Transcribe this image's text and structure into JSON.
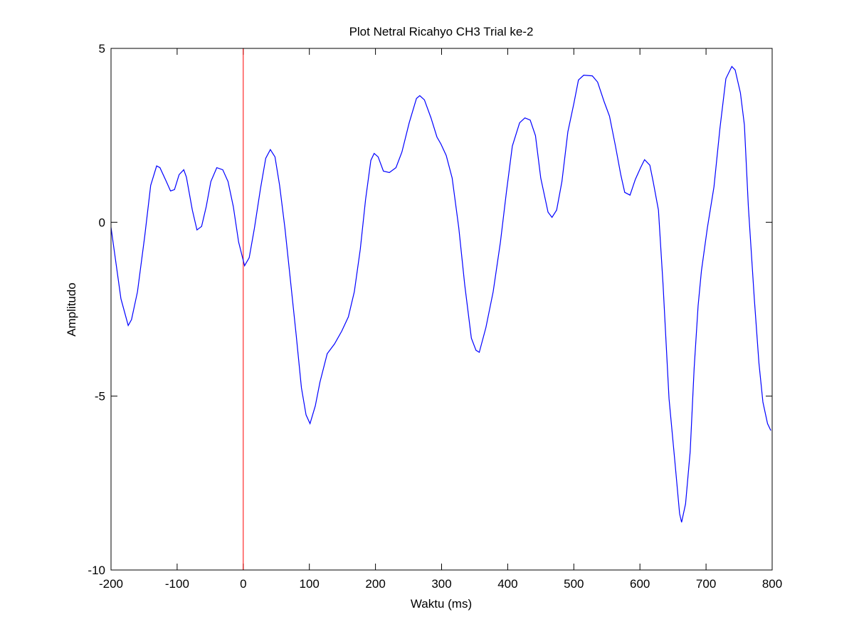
{
  "chart_data": {
    "type": "line",
    "title": "Plot Netral Ricahyo CH3 Trial ke-2",
    "x_label": "Waktu (ms)",
    "y_label": "Amplitudo",
    "x": [
      -200,
      -185,
      -174,
      -169,
      -160,
      -149,
      -140,
      -131,
      -126,
      -117,
      -110,
      -104,
      -97,
      -90,
      -86,
      -77,
      -70,
      -63,
      -56,
      -49,
      -40,
      -31,
      -23,
      -15,
      -7,
      2,
      9,
      17,
      26,
      34,
      41,
      48,
      55,
      63,
      71,
      80,
      88,
      95,
      101,
      109,
      116,
      127,
      138,
      149,
      159,
      168,
      177,
      185,
      193,
      198,
      204,
      212,
      221,
      231,
      240,
      251,
      262,
      267,
      274,
      284,
      293,
      299,
      307,
      316,
      326,
      335,
      345,
      352,
      357,
      367,
      378,
      389,
      398,
      407,
      418,
      426,
      434,
      442,
      450,
      461,
      467,
      474,
      482,
      491,
      500,
      507,
      515,
      528,
      536,
      546,
      554,
      563,
      571,
      577,
      585,
      593,
      601,
      607,
      615,
      620,
      628,
      635,
      644,
      653,
      660,
      663,
      669,
      676,
      682,
      688,
      693,
      702,
      712,
      721,
      730,
      739,
      744,
      752,
      758,
      764,
      773,
      780,
      786,
      793,
      798
    ],
    "series": [
      {
        "name": "CH3",
        "color": "#0000ff",
        "values": [
          -0.15,
          -2.2,
          -2.97,
          -2.8,
          -2.0,
          -0.4,
          1.06,
          1.62,
          1.57,
          1.2,
          0.9,
          0.94,
          1.37,
          1.51,
          1.3,
          0.35,
          -0.22,
          -0.12,
          0.45,
          1.17,
          1.57,
          1.51,
          1.17,
          0.45,
          -0.57,
          -1.25,
          -1.02,
          -0.16,
          0.96,
          1.84,
          2.09,
          1.88,
          1.06,
          -0.16,
          -1.6,
          -3.23,
          -4.76,
          -5.54,
          -5.79,
          -5.28,
          -4.6,
          -3.78,
          -3.5,
          -3.13,
          -2.72,
          -2.0,
          -0.78,
          0.65,
          1.78,
          1.98,
          1.88,
          1.47,
          1.43,
          1.57,
          2.02,
          2.86,
          3.56,
          3.64,
          3.52,
          3.0,
          2.45,
          2.25,
          1.92,
          1.27,
          -0.16,
          -1.8,
          -3.33,
          -3.68,
          -3.74,
          -3.03,
          -2.0,
          -0.57,
          0.86,
          2.19,
          2.86,
          3.0,
          2.94,
          2.49,
          1.27,
          0.29,
          0.14,
          0.35,
          1.17,
          2.6,
          3.41,
          4.09,
          4.23,
          4.21,
          4.03,
          3.46,
          3.05,
          2.19,
          1.37,
          0.86,
          0.78,
          1.23,
          1.57,
          1.8,
          1.64,
          1.17,
          0.35,
          -1.8,
          -5.07,
          -6.91,
          -8.38,
          -8.63,
          -8.1,
          -6.6,
          -4.2,
          -2.4,
          -1.4,
          -0.16,
          1.02,
          2.7,
          4.13,
          4.48,
          4.38,
          3.72,
          2.8,
          0.45,
          -2.2,
          -4.05,
          -5.17,
          -5.79,
          -5.99
        ]
      }
    ],
    "vline_x": 0,
    "vline_color": "#ff0000",
    "xlim": [
      -200,
      800
    ],
    "ylim": [
      -10,
      5
    ],
    "xticks": [
      -200,
      -100,
      0,
      100,
      200,
      300,
      400,
      500,
      600,
      700,
      800
    ],
    "yticks": [
      -10,
      -5,
      0,
      5
    ],
    "grid": false
  }
}
